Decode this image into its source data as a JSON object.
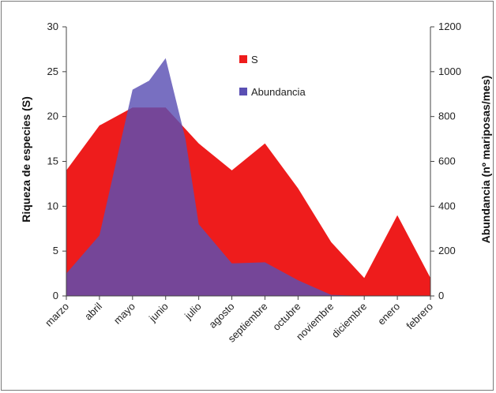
{
  "chart_data": {
    "type": "area",
    "categories": [
      "marzo",
      "abril",
      "mayo",
      "junio",
      "julio",
      "agosto",
      "septiembre",
      "octubre",
      "noviembre",
      "diciembre",
      "enero",
      "febrero"
    ],
    "x_points": [
      0,
      1,
      2,
      2.5,
      3,
      3.6,
      4,
      5,
      6,
      7,
      8,
      9,
      10,
      11
    ],
    "series": [
      {
        "name": "S",
        "axis": "left",
        "color": "#ee1c1c",
        "x": [
          0,
          1,
          2,
          3,
          4,
          5,
          6,
          7,
          8,
          9,
          10,
          11
        ],
        "values": [
          14,
          19,
          21,
          21,
          17,
          14,
          17,
          12,
          6,
          2,
          9,
          2
        ]
      },
      {
        "name": "Abundancia",
        "axis": "right",
        "color": "#5a4fb3",
        "x": [
          0,
          1,
          2,
          2.5,
          3,
          3.6,
          4,
          5,
          6,
          7,
          8,
          9,
          10,
          11
        ],
        "values": [
          100,
          270,
          920,
          960,
          1060,
          700,
          320,
          145,
          150,
          70,
          5,
          0,
          0,
          0
        ]
      }
    ],
    "ylabel_left": "Riqueza de especies (S)",
    "ylabel_right": "Abundancia (nº mariposas/mes)",
    "ylim_left": [
      0,
      30
    ],
    "yticks_left": [
      "0",
      "5",
      "10",
      "15",
      "20",
      "25",
      "30"
    ],
    "ylim_right": [
      0,
      1200
    ],
    "yticks_right": [
      "0",
      "200",
      "400",
      "600",
      "800",
      "1000",
      "1200"
    ],
    "grid": false,
    "legend_position": "top-center"
  }
}
